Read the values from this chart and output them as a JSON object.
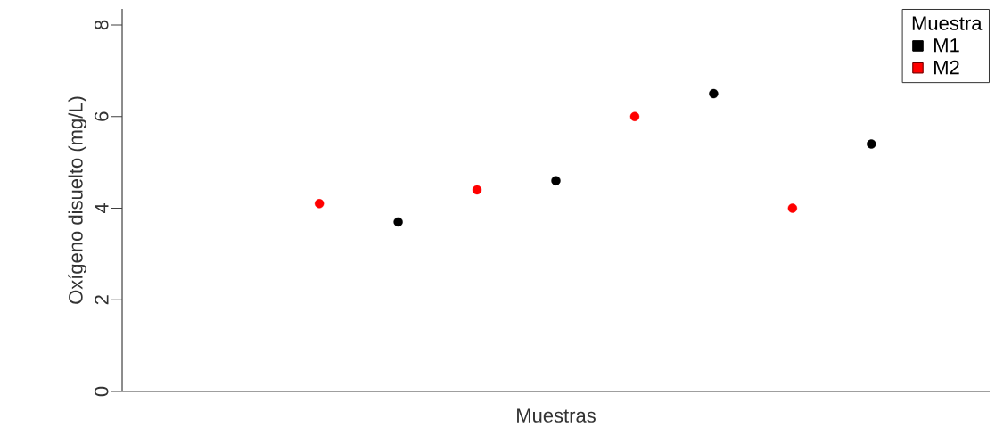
{
  "chart_data": {
    "type": "scatter",
    "xlabel": "Muestras",
    "ylabel": "Oxígeno disuelto (mg/L)",
    "legend_title": "Muestra",
    "categories": [
      null,
      null,
      null,
      null,
      null,
      null,
      null,
      null,
      null,
      null,
      null
    ],
    "series": [
      {
        "name": "M1",
        "color": "#000000",
        "values": [
          null,
          null,
          null,
          3.7,
          null,
          4.6,
          null,
          6.5,
          null,
          5.4,
          null
        ]
      },
      {
        "name": "M2",
        "color": "#ff0000",
        "values": [
          null,
          null,
          4.1,
          null,
          4.4,
          null,
          6.0,
          null,
          4.0,
          null,
          null
        ]
      }
    ],
    "ylim": [
      0,
      8.35
    ],
    "yticks": [
      0,
      2,
      4,
      6,
      8
    ],
    "legend": "top right",
    "tick_labels": "y",
    "grid": false
  }
}
